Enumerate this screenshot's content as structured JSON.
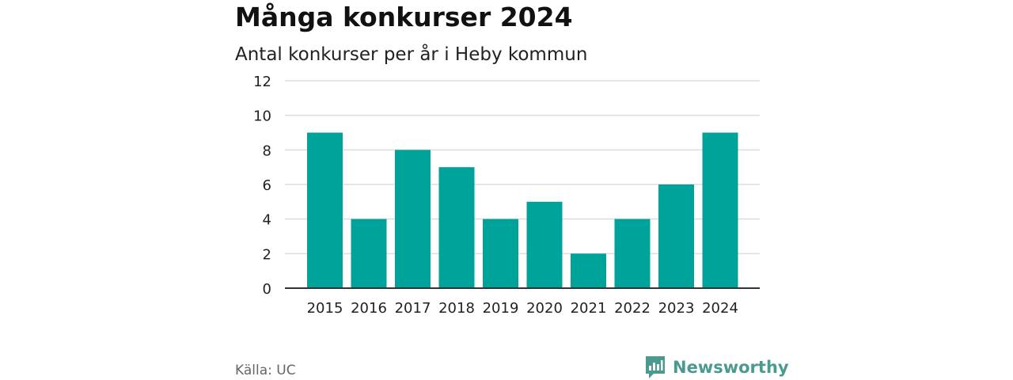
{
  "title": "Många konkurser 2024",
  "subtitle": "Antal konkurser per år i Heby kommun",
  "source": "Källa: UC",
  "brand": {
    "name": "Newsworthy",
    "color": "#4a9a90",
    "icon": "newsworthy-logo-icon"
  },
  "colors": {
    "bar": "#00a39a",
    "grid": "#dddddd",
    "axis": "#333333"
  },
  "chart_data": {
    "type": "bar",
    "categories": [
      "2015",
      "2016",
      "2017",
      "2018",
      "2019",
      "2020",
      "2021",
      "2022",
      "2023",
      "2024"
    ],
    "values": [
      9,
      4,
      8,
      7,
      4,
      5,
      2,
      4,
      6,
      9
    ],
    "ylim": [
      0,
      12
    ],
    "yticks": [
      0,
      2,
      4,
      6,
      8,
      10,
      12
    ],
    "grid": true,
    "legend": "none"
  }
}
